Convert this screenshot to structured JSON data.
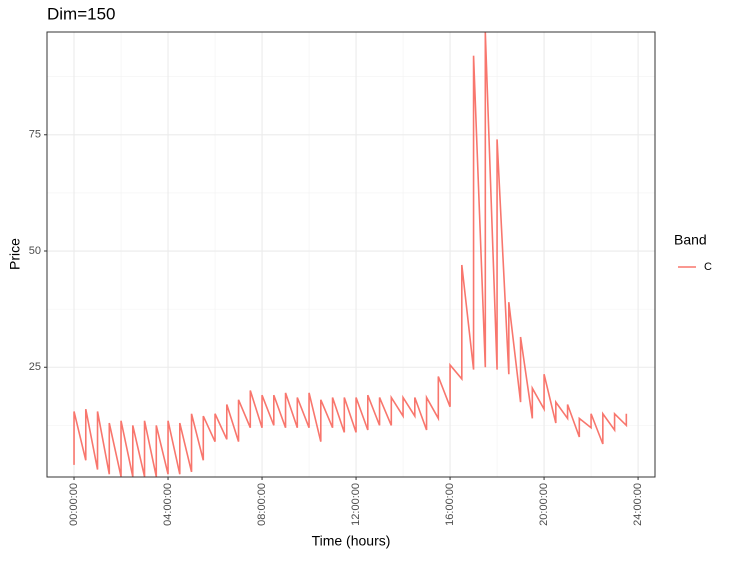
{
  "chart_data": {
    "type": "line",
    "title": "Dim=150",
    "x_label": "Time (hours)",
    "y_label": "Price",
    "legend_title": "Band",
    "series": [
      {
        "name": "C",
        "color": "#F8766D",
        "x": [
          0,
          0,
          0.5,
          0.5,
          1,
          1,
          1.5,
          1.5,
          2,
          2,
          2.5,
          2.5,
          3,
          3,
          3.5,
          3.5,
          4,
          4,
          4.5,
          4.5,
          5,
          5,
          5.5,
          5.5,
          6,
          6,
          6.5,
          6.5,
          7,
          7,
          7.5,
          7.5,
          8,
          8,
          8.5,
          8.5,
          9,
          9,
          9.5,
          9.5,
          10,
          10,
          10.5,
          10.5,
          11,
          11,
          11.5,
          11.5,
          12,
          12,
          12.5,
          12.5,
          13,
          13,
          13.5,
          13.5,
          14,
          14,
          14.5,
          14.5,
          15,
          15,
          15.5,
          15.5,
          16,
          16,
          16.5,
          16.5,
          17,
          17,
          17.5,
          17.5,
          18,
          18,
          18.5,
          18.5,
          19,
          19,
          19.5,
          19.5,
          20,
          20,
          20.5,
          20.5,
          21,
          21,
          21.5,
          21.5,
          22,
          22,
          22.5,
          22.5,
          23,
          23,
          23.5,
          23.5
        ],
        "values": [
          4,
          15.5,
          5,
          16,
          3,
          15.5,
          2,
          13,
          1.5,
          13.5,
          1.5,
          12.5,
          1.5,
          13.5,
          1.5,
          12.5,
          2,
          13.5,
          2,
          13,
          2.5,
          15,
          5,
          14.5,
          9,
          15,
          9.5,
          17,
          9,
          18,
          12,
          20,
          12,
          19,
          12.5,
          19,
          12,
          19.5,
          12,
          18.5,
          12,
          19.5,
          9,
          18,
          12,
          18.5,
          11,
          18.5,
          11,
          18.5,
          11.5,
          19,
          12.5,
          18.5,
          12.5,
          18.5,
          14.5,
          18.5,
          14.5,
          18.5,
          11.5,
          18.5,
          14,
          23,
          16.5,
          25.5,
          22.5,
          47,
          24.5,
          92,
          25,
          97,
          24.5,
          74,
          23.5,
          39,
          17.5,
          31.5,
          14,
          20.5,
          16,
          23.5,
          13,
          17.5,
          14,
          17,
          10,
          14,
          12,
          15,
          8.5,
          15,
          11.5,
          15,
          12.5,
          15
        ]
      }
    ],
    "xlim": [
      -1.15,
      24.72
    ],
    "ylim": [
      1.4,
      97.1
    ],
    "xticks": [
      {
        "value": 0,
        "label": "00:00:00"
      },
      {
        "value": 4,
        "label": "04:00:00"
      },
      {
        "value": 8,
        "label": "08:00:00"
      },
      {
        "value": 12,
        "label": "12:00:00"
      },
      {
        "value": 16,
        "label": "16:00:00"
      },
      {
        "value": 20,
        "label": "20:00:00"
      },
      {
        "value": 24,
        "label": "24:00:00"
      }
    ],
    "yticks": [
      25,
      50,
      75
    ],
    "minor_xticks": [
      2,
      6,
      10,
      14,
      18,
      22
    ],
    "minor_yticks": [
      12.5,
      37.5,
      62.5,
      87.5
    ],
    "grid": true
  }
}
